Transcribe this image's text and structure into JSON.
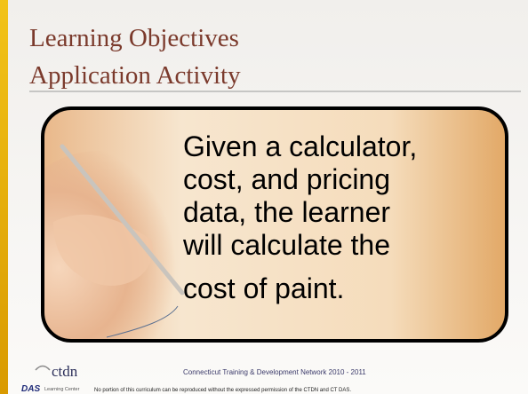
{
  "slide": {
    "title_lines": [
      "Learning Objectives",
      "Application Activity"
    ],
    "body_lines": [
      "Given a calculator,",
      "cost, and pricing",
      "data, the learner",
      "will calculate the",
      "cost of paint."
    ],
    "footer": {
      "logo_ctdn": "ctdn",
      "logo_das": "DAS",
      "logo_das_sub": "Learning Center",
      "network": "Connecticut Training & Development Network 2010 - 2011",
      "disclaimer": "No portion of this curriculum can be reproduced without the expressed permission of the CTDN and CT DAS."
    }
  }
}
